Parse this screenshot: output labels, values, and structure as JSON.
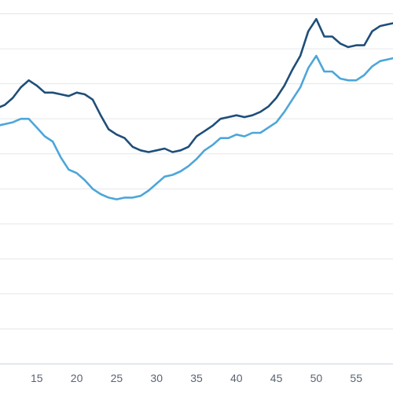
{
  "chart_data": {
    "type": "line",
    "xlabel": "",
    "ylabel": "",
    "grid": true,
    "legend": "none",
    "xlim": [
      10,
      60
    ],
    "ylim": [
      0,
      11
    ],
    "x_ticks": [
      15,
      20,
      25,
      30,
      35,
      40,
      45,
      50,
      55
    ],
    "x": [
      10,
      11,
      12,
      13,
      14,
      15,
      16,
      17,
      18,
      19,
      20,
      21,
      22,
      23,
      24,
      25,
      26,
      27,
      28,
      29,
      30,
      31,
      32,
      33,
      34,
      35,
      36,
      37,
      38,
      39,
      40,
      41,
      42,
      43,
      44,
      45,
      46,
      47,
      48,
      49,
      50,
      51,
      52,
      53,
      54,
      55,
      56,
      57,
      58,
      59,
      60
    ],
    "series": [
      {
        "color": "#1f4e79",
        "values": [
          7.3,
          7.4,
          7.6,
          7.9,
          8.1,
          7.95,
          7.75,
          7.75,
          7.7,
          7.65,
          7.75,
          7.7,
          7.55,
          7.1,
          6.7,
          6.55,
          6.45,
          6.2,
          6.1,
          6.05,
          6.1,
          6.15,
          6.05,
          6.1,
          6.2,
          6.5,
          6.65,
          6.8,
          7.0,
          7.05,
          7.1,
          7.05,
          7.1,
          7.2,
          7.35,
          7.6,
          7.95,
          8.4,
          8.8,
          9.5,
          9.85,
          9.35,
          9.35,
          9.15,
          9.05,
          9.1,
          9.1,
          9.5,
          9.65,
          9.7,
          9.75
        ]
      },
      {
        "color": "#4da6d9",
        "values": [
          6.8,
          6.85,
          6.9,
          7.0,
          7.0,
          6.75,
          6.5,
          6.35,
          5.9,
          5.55,
          5.45,
          5.25,
          5.0,
          4.85,
          4.75,
          4.7,
          4.75,
          4.75,
          4.8,
          4.95,
          5.15,
          5.35,
          5.4,
          5.5,
          5.65,
          5.85,
          6.1,
          6.25,
          6.45,
          6.45,
          6.55,
          6.5,
          6.6,
          6.6,
          6.75,
          6.9,
          7.2,
          7.55,
          7.9,
          8.45,
          8.8,
          8.35,
          8.35,
          8.15,
          8.1,
          8.1,
          8.25,
          8.5,
          8.65,
          8.7,
          8.75
        ]
      }
    ]
  }
}
